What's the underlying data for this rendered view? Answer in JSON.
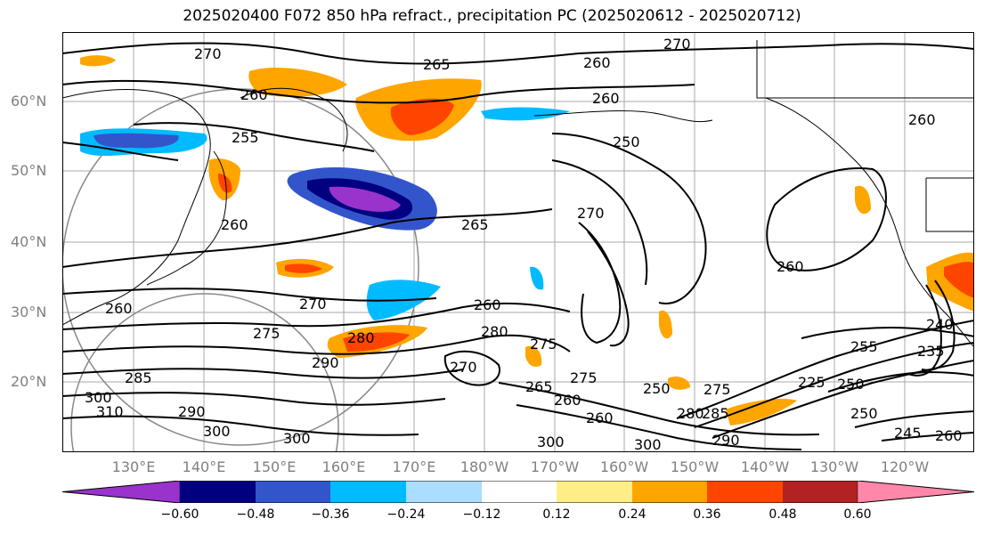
{
  "title": "2025020400 F072 850 hPa refract., precipitation PC (2025020612 - 2025020712)",
  "lat_labels": [
    "60°N",
    "50°N",
    "40°N",
    "30°N",
    "20°N"
  ],
  "lon_labels": [
    "130°E",
    "140°E",
    "150°E",
    "160°E",
    "170°E",
    "180°W",
    "170°W",
    "160°W",
    "150°W",
    "140°W",
    "130°W",
    "120°W"
  ],
  "colorbar": {
    "ticks": [
      "−0.60",
      "−0.48",
      "−0.36",
      "−0.24",
      "−0.12",
      "0.12",
      "0.24",
      "0.36",
      "0.48",
      "0.60"
    ],
    "colors": [
      "#9933cc",
      "#000080",
      "#3355cc",
      "#00bbff",
      "#aaddff",
      "#ffffff",
      "#ffee88",
      "#ffa500",
      "#ff4400",
      "#b22222",
      "#ff88aa"
    ]
  },
  "contour_labels": [
    "270",
    "270",
    "265",
    "260",
    "260",
    "260",
    "255",
    "250",
    "265",
    "260",
    "260",
    "270",
    "260",
    "260",
    "270",
    "275",
    "280",
    "280",
    "290",
    "270",
    "285",
    "300",
    "310",
    "300",
    "300",
    "290",
    "275",
    "265",
    "260",
    "250",
    "275",
    "250",
    "225",
    "260",
    "275",
    "280",
    "290",
    "300",
    "300",
    "285",
    "255",
    "240",
    "235",
    "250",
    "245",
    "260",
    "260"
  ]
}
